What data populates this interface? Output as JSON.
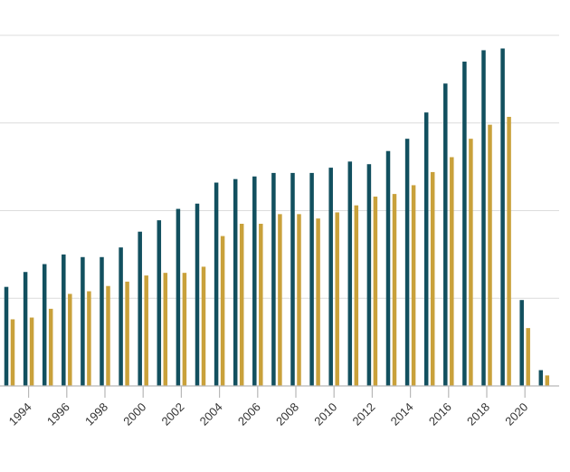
{
  "chart_data": {
    "type": "bar",
    "title": "",
    "xlabel": "",
    "ylabel": "",
    "grid": true,
    "legend": "none",
    "ylim": [
      0,
      400
    ],
    "categories": [
      "1993",
      "1994",
      "1995",
      "1996",
      "1997",
      "1998",
      "1999",
      "2000",
      "2001",
      "2002",
      "2003",
      "2004",
      "2005",
      "2006",
      "2007",
      "2008",
      "2009",
      "2010",
      "2011",
      "2012",
      "2013",
      "2014",
      "2015",
      "2016",
      "2017",
      "2018",
      "2019",
      "2020",
      "2021"
    ],
    "x_tick_labels": [
      "1994",
      "1996",
      "1998",
      "2000",
      "2002",
      "2004",
      "2006",
      "2008",
      "2010",
      "2012",
      "2014",
      "2016",
      "2018",
      "2020"
    ],
    "series": [
      {
        "color": "#12505f",
        "values": [
          113,
          130,
          139,
          150,
          147,
          147,
          158,
          176,
          189,
          202,
          208,
          232,
          236,
          239,
          243,
          243,
          243,
          249,
          256,
          253,
          268,
          282,
          312,
          345,
          370,
          383,
          385,
          98,
          18
        ]
      },
      {
        "color": "#c9a13b",
        "values": [
          76,
          78,
          88,
          105,
          108,
          114,
          119,
          126,
          129,
          129,
          136,
          171,
          185,
          185,
          196,
          196,
          191,
          198,
          206,
          216,
          219,
          229,
          244,
          261,
          282,
          298,
          307,
          66,
          12
        ]
      }
    ]
  }
}
